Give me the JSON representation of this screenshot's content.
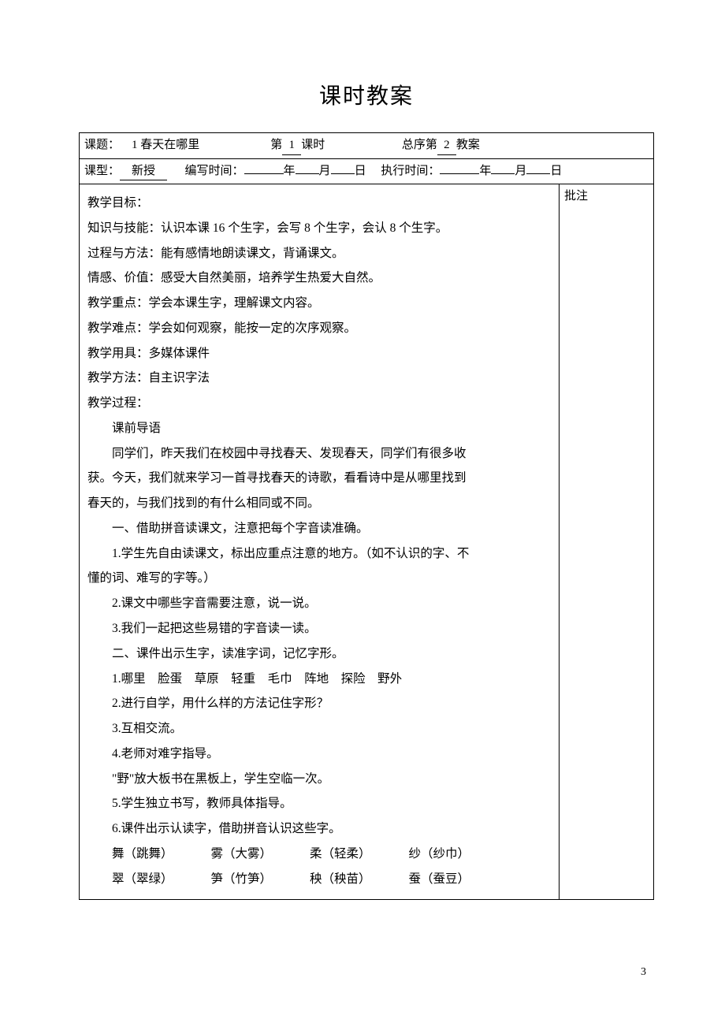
{
  "title": "课时教案",
  "header": {
    "topic_label": "课题：",
    "topic_value": "1 春天在哪里",
    "period_prefix": "第",
    "period_value": "1",
    "period_suffix": "课时",
    "seq_prefix": "总序第",
    "seq_value": "2",
    "seq_suffix": "教案",
    "type_label": "课型：",
    "type_value": "新授",
    "write_label": "编写时间：",
    "year_suffix": "年",
    "month_suffix": "月",
    "day_suffix": "日",
    "exec_label": "执行时间："
  },
  "notes_label": "批注",
  "content": {
    "objectives_label": "教学目标：",
    "obj1": "知识与技能：认识本课 16 个生字，会写 8 个生字，会认 8 个生字。",
    "obj2": "过程与方法：能有感情地朗读课文，背诵课文。",
    "obj3": "情感、价值：感受大自然美丽，培养学生热爱大自然。",
    "keypoint": "教学重点：学会本课生字，理解课文内容。",
    "difficulty": "教学难点：学会如何观察，能按一定的次序观察。",
    "tools": "教学用具：多媒体课件",
    "method": "教学方法：自主识字法",
    "process_label": "教学过程：",
    "pre_lesson": "课前导语",
    "intro1": "同学们，昨天我们在校园中寻找春天、发现春天，同学们有很多收",
    "intro2": "获。今天，我们就来学习一首寻找春天的诗歌，看看诗中是从哪里找到",
    "intro3": "春天的，与我们找到的有什么相同或不同。",
    "sec1_title": "一、借助拼音读课文，注意把每个字音读准确。",
    "sec1_1a": "1.学生先自由读课文，标出应重点注意的地方。（如不认识的字、不",
    "sec1_1b": "懂的词、难写的字等。）",
    "sec1_2": "2.课文中哪些字音需要注意，说一说。",
    "sec1_3": "3.我们一起把这些易错的字音读一读。",
    "sec2_title": "二、课件出示生字，读准字词，记忆字形。",
    "sec2_1": "1.哪里　脸蛋　草原　轻重　毛巾　阵地　探险　野外",
    "sec2_2": "2.进行自学，用什么样的方法记住字形？",
    "sec2_3": "3.互相交流。",
    "sec2_4": "4.老师对难字指导。",
    "sec2_4a": "\"野\"放大板书在黑板上，学生空临一次。",
    "sec2_5": "5.学生独立书写，教师具体指导。",
    "sec2_6": "6.课件出示认读字，借助拼音认识这些字。",
    "vocab_row1": {
      "a": "舞（跳舞）",
      "b": "雾（大雾）",
      "c": "柔（轻柔）",
      "d": "纱（纱巾）"
    },
    "vocab_row2": {
      "a": "翠（翠绿）",
      "b": "笋（竹笋）",
      "c": "秧（秧苗）",
      "d": "蚕（蚕豆）"
    }
  },
  "page_number": "3"
}
